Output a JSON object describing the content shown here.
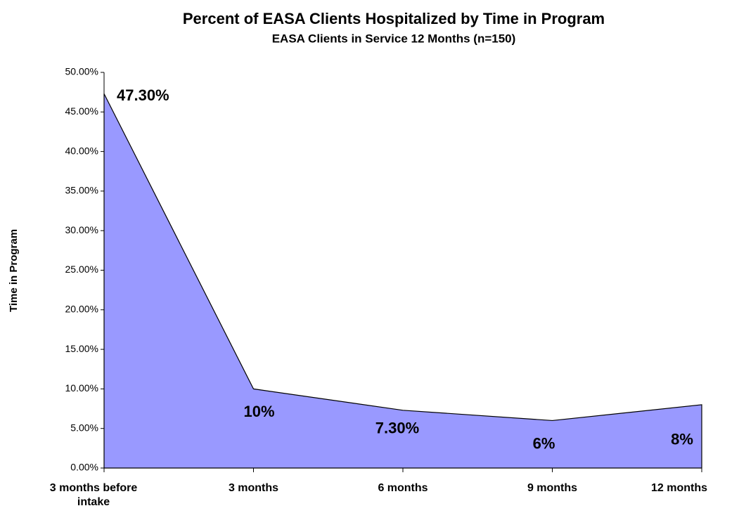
{
  "chart_data": {
    "type": "area",
    "title": "Percent of EASA Clients Hospitalized by Time in Program",
    "subtitle": "EASA Clients in Service 12 Months (n=150)",
    "y_label": "Time in Program",
    "categories": [
      "3 months before intake",
      "3 months",
      "6 months",
      "9 months",
      "12 months"
    ],
    "values": [
      47.3,
      10,
      7.3,
      6,
      8
    ],
    "value_labels": [
      "47.30%",
      "10%",
      "7.30%",
      "6%",
      "8%"
    ],
    "color": "#9999ff",
    "ylim": [
      0,
      50
    ],
    "yticks": [
      {
        "value": 0,
        "label": "0.00%"
      },
      {
        "value": 5,
        "label": "5.00%"
      },
      {
        "value": 10,
        "label": "10.00%"
      },
      {
        "value": 15,
        "label": "15.00%"
      },
      {
        "value": 20,
        "label": "20.00%"
      },
      {
        "value": 25,
        "label": "25.00%"
      },
      {
        "value": 30,
        "label": "30.00%"
      },
      {
        "value": 35,
        "label": "35.00%"
      },
      {
        "value": 40,
        "label": "40.00%"
      },
      {
        "value": 45,
        "label": "45.00%"
      },
      {
        "value": 50,
        "label": "50.00%"
      }
    ]
  }
}
